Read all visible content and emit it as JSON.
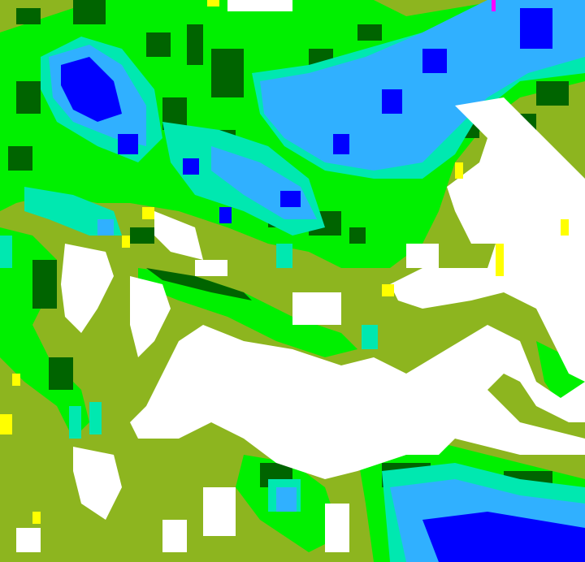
{
  "map": {
    "type": "classified-raster",
    "palette": {
      "background": "#8db51f",
      "clear": "#ffffff",
      "yellow": "#ffff00",
      "green": "#00f000",
      "dark_green": "#006400",
      "cyan": "#00e8b0",
      "light_blue": "#30b0ff",
      "medium_blue": "#1e78ff",
      "blue": "#0000ff",
      "magenta": "#ff00ff"
    }
  }
}
